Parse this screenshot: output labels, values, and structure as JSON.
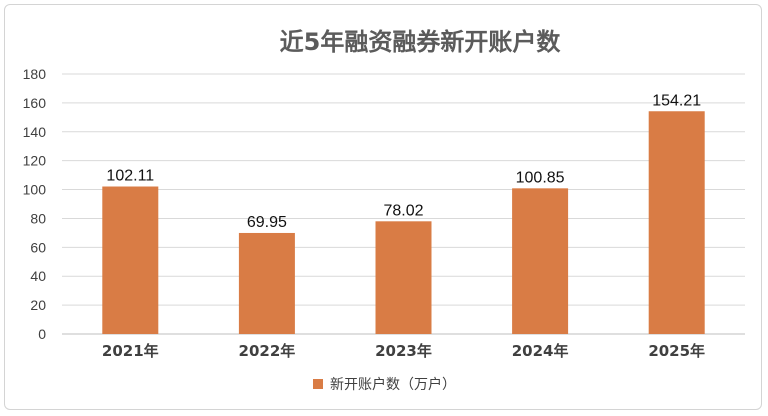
{
  "chart_data": {
    "type": "bar",
    "title": "近5年融资融券新开账户数",
    "categories": [
      "2021年",
      "2022年",
      "2023年",
      "2024年",
      "2025年"
    ],
    "series": [
      {
        "name": "新开账户数（万户）",
        "values": [
          102.11,
          69.95,
          78.02,
          100.85,
          154.21
        ]
      }
    ],
    "data_labels": [
      "102.11",
      "69.95",
      "78.02",
      "100.85",
      "154.21"
    ],
    "ylim": [
      0,
      180
    ],
    "yticks": [
      0,
      20,
      40,
      60,
      80,
      100,
      120,
      140,
      160,
      180
    ],
    "grid": true,
    "legend_position": "bottom",
    "colors": {
      "bar": "#D97C45",
      "grid": "#d9d9d9",
      "title": "#5b5b5b"
    }
  }
}
